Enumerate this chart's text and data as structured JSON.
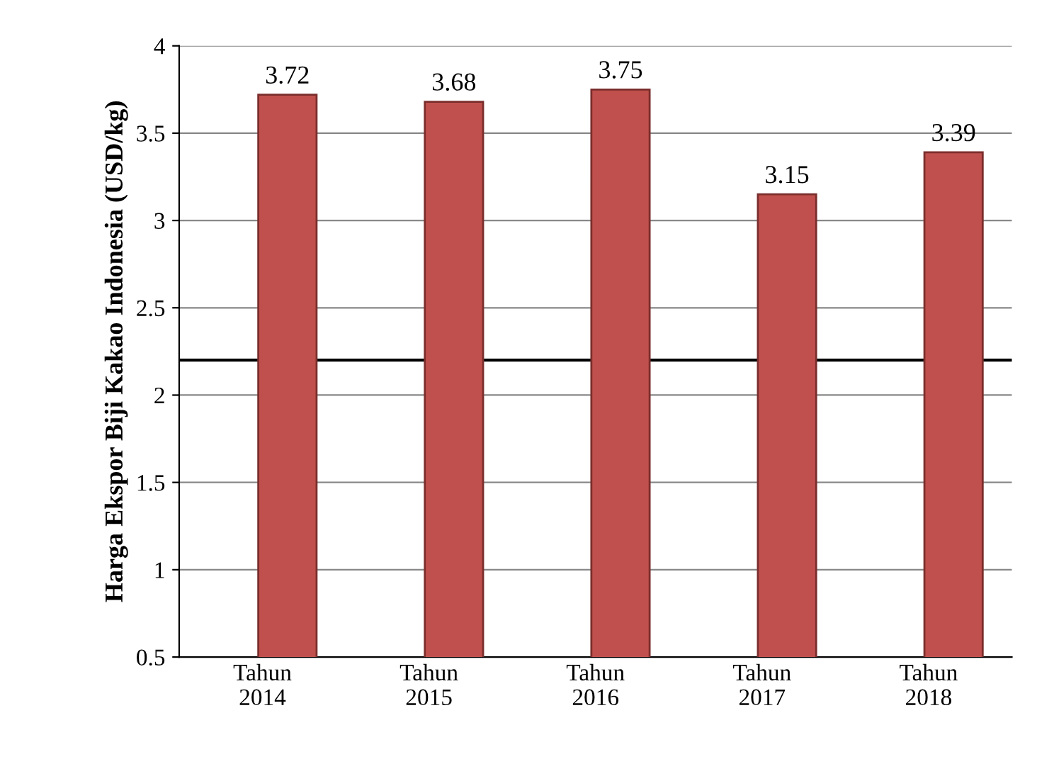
{
  "chart_data": {
    "type": "bar",
    "ylabel": "Harga Ekspor Biji Kakao Indonesia (USD/kg)",
    "categories": [
      "Tahun\n2014",
      "Tahun\n2015",
      "Tahun\n2016",
      "Tahun\n2017",
      "Tahun\n2018"
    ],
    "series": [
      {
        "color": "#c0504d",
        "values": [
          3.72,
          3.68,
          3.75,
          3.15,
          3.39
        ]
      }
    ],
    "data_labels": true,
    "ylim": [
      0.5,
      4
    ],
    "yticks": [
      0.5,
      1,
      1.5,
      2,
      2.5,
      3,
      3.5,
      4
    ],
    "ref_lines": [
      {
        "axis": "y",
        "value": 2.2,
        "color": "#000000",
        "line_style": "solid"
      }
    ],
    "grid": "y",
    "legend": false
  }
}
